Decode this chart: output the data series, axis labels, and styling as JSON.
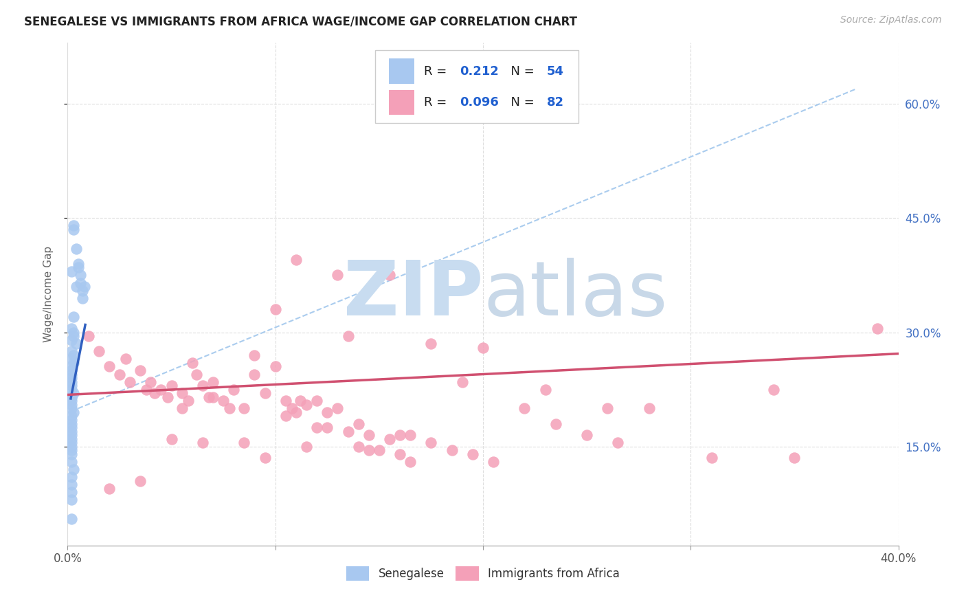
{
  "title": "SENEGALESE VS IMMIGRANTS FROM AFRICA WAGE/INCOME GAP CORRELATION CHART",
  "source": "Source: ZipAtlas.com",
  "ylabel": "Wage/Income Gap",
  "color_blue": "#a8c8f0",
  "color_pink": "#f4a0b8",
  "trend_blue": "#3060c0",
  "trend_pink": "#d05070",
  "dash_color": "#aaccee",
  "grid_color": "#dddddd",
  "background": "#ffffff",
  "right_tick_color": "#4472c4",
  "xlim": [
    0.0,
    0.4
  ],
  "ylim": [
    0.02,
    0.68
  ],
  "yticks": [
    0.15,
    0.3,
    0.45,
    0.6
  ],
  "yticklabels": [
    "15.0%",
    "30.0%",
    "45.0%",
    "60.0%"
  ],
  "R_blue": "0.212",
  "N_blue": "54",
  "R_pink": "0.096",
  "N_pink": "82",
  "sen_x": [
    0.003,
    0.003,
    0.004,
    0.005,
    0.005,
    0.006,
    0.006,
    0.007,
    0.007,
    0.008,
    0.002,
    0.003,
    0.004,
    0.002,
    0.003,
    0.002,
    0.003,
    0.004,
    0.002,
    0.003,
    0.002,
    0.003,
    0.002,
    0.002,
    0.002,
    0.002,
    0.002,
    0.002,
    0.002,
    0.003,
    0.002,
    0.002,
    0.002,
    0.002,
    0.003,
    0.002,
    0.002,
    0.002,
    0.002,
    0.002,
    0.002,
    0.002,
    0.002,
    0.002,
    0.002,
    0.002,
    0.002,
    0.003,
    0.002,
    0.002,
    0.002,
    0.002,
    0.002,
    0.002
  ],
  "sen_y": [
    0.44,
    0.435,
    0.41,
    0.39,
    0.385,
    0.375,
    0.365,
    0.355,
    0.345,
    0.36,
    0.38,
    0.32,
    0.36,
    0.29,
    0.3,
    0.305,
    0.295,
    0.285,
    0.275,
    0.27,
    0.265,
    0.26,
    0.255,
    0.25,
    0.245,
    0.24,
    0.235,
    0.23,
    0.225,
    0.22,
    0.215,
    0.21,
    0.205,
    0.2,
    0.195,
    0.19,
    0.185,
    0.18,
    0.175,
    0.17,
    0.165,
    0.16,
    0.155,
    0.15,
    0.145,
    0.14,
    0.13,
    0.12,
    0.11,
    0.1,
    0.09,
    0.08,
    0.055,
    0.215
  ],
  "afr_x": [
    0.01,
    0.015,
    0.02,
    0.025,
    0.028,
    0.03,
    0.035,
    0.038,
    0.04,
    0.042,
    0.045,
    0.048,
    0.05,
    0.055,
    0.058,
    0.06,
    0.062,
    0.065,
    0.068,
    0.07,
    0.075,
    0.078,
    0.08,
    0.085,
    0.09,
    0.095,
    0.1,
    0.105,
    0.108,
    0.11,
    0.112,
    0.115,
    0.12,
    0.125,
    0.13,
    0.135,
    0.14,
    0.145,
    0.15,
    0.155,
    0.16,
    0.165,
    0.175,
    0.185,
    0.195,
    0.205,
    0.22,
    0.235,
    0.25,
    0.265,
    0.28,
    0.31,
    0.34,
    0.35,
    0.02,
    0.035,
    0.055,
    0.07,
    0.09,
    0.11,
    0.13,
    0.155,
    0.175,
    0.2,
    0.23,
    0.26,
    0.1,
    0.135,
    0.16,
    0.19,
    0.095,
    0.115,
    0.125,
    0.145,
    0.05,
    0.065,
    0.085,
    0.105,
    0.12,
    0.14,
    0.165,
    0.39
  ],
  "afr_y": [
    0.295,
    0.275,
    0.255,
    0.245,
    0.265,
    0.235,
    0.25,
    0.225,
    0.235,
    0.22,
    0.225,
    0.215,
    0.23,
    0.22,
    0.21,
    0.26,
    0.245,
    0.23,
    0.215,
    0.235,
    0.21,
    0.2,
    0.225,
    0.2,
    0.245,
    0.22,
    0.255,
    0.21,
    0.2,
    0.195,
    0.21,
    0.205,
    0.21,
    0.195,
    0.2,
    0.17,
    0.18,
    0.165,
    0.145,
    0.16,
    0.14,
    0.13,
    0.155,
    0.145,
    0.14,
    0.13,
    0.2,
    0.18,
    0.165,
    0.155,
    0.2,
    0.135,
    0.225,
    0.135,
    0.095,
    0.105,
    0.2,
    0.215,
    0.27,
    0.395,
    0.375,
    0.375,
    0.285,
    0.28,
    0.225,
    0.2,
    0.33,
    0.295,
    0.165,
    0.235,
    0.135,
    0.15,
    0.175,
    0.145,
    0.16,
    0.155,
    0.155,
    0.19,
    0.175,
    0.15,
    0.165,
    0.305
  ]
}
